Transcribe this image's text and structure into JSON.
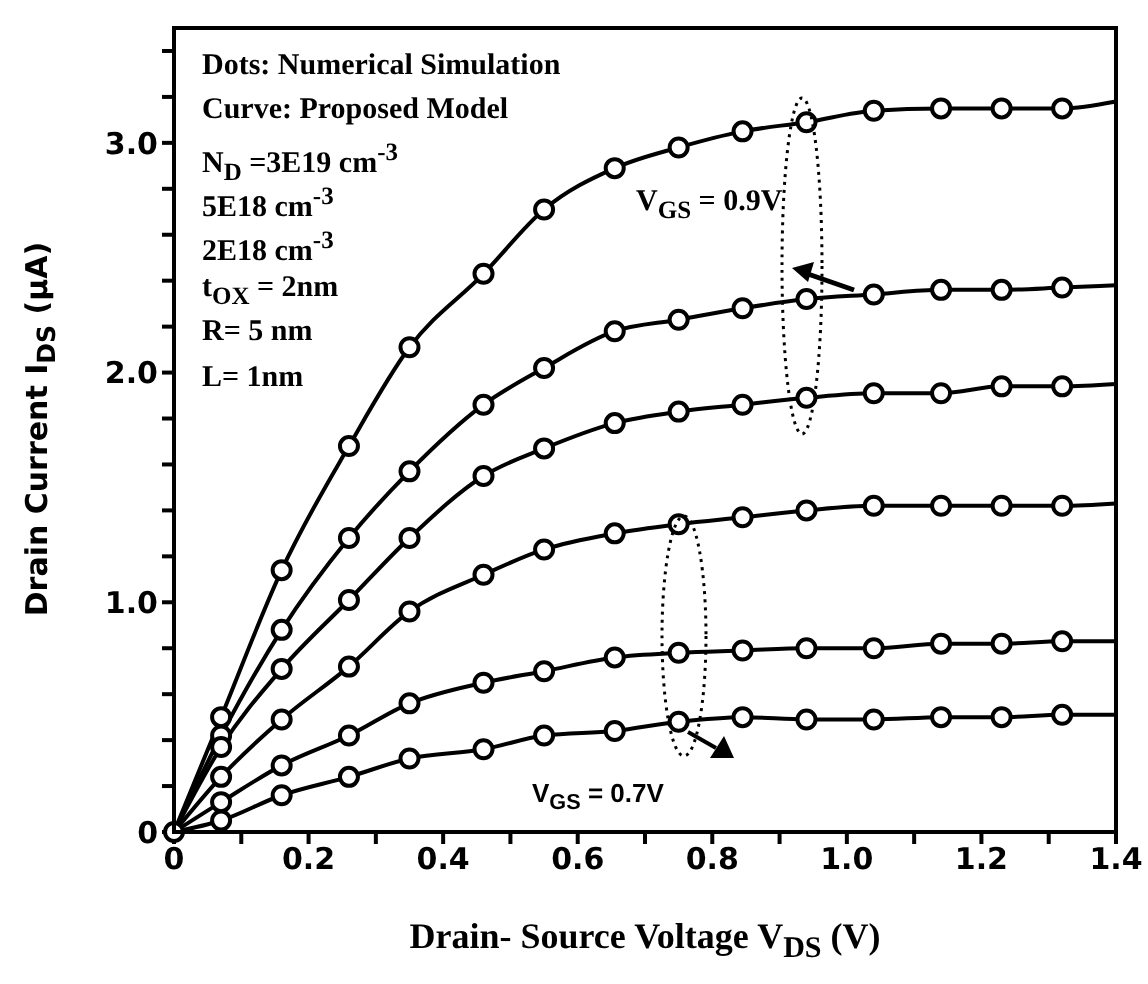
{
  "chart_data": {
    "type": "line",
    "xlabel": "Drain- Source Voltage V$_{DS}$ (V)",
    "ylabel": "Drain Current I$_{DS}$  (μA)",
    "xlim": [
      0,
      1.4
    ],
    "ylim": [
      0,
      3.5
    ],
    "xticks": [
      {
        "value": 0,
        "label": "0"
      },
      {
        "value": 0.1,
        "label": null
      },
      {
        "value": 0.2,
        "label": "0.2"
      },
      {
        "value": 0.3,
        "label": null
      },
      {
        "value": 0.4,
        "label": "0.4"
      },
      {
        "value": 0.5,
        "label": null
      },
      {
        "value": 0.6,
        "label": "0.6"
      },
      {
        "value": 0.7,
        "label": null
      },
      {
        "value": 0.8,
        "label": "0.8"
      },
      {
        "value": 0.9,
        "label": null
      },
      {
        "value": 1.0,
        "label": "1.0"
      },
      {
        "value": 1.1,
        "label": null
      },
      {
        "value": 1.2,
        "label": "1.2"
      },
      {
        "value": 1.3,
        "label": null
      },
      {
        "value": 1.4,
        "label": "1.4"
      }
    ],
    "yticks": [
      {
        "value": 0,
        "label": "0"
      },
      {
        "value": 0.2,
        "label": null
      },
      {
        "value": 0.4,
        "label": null
      },
      {
        "value": 0.6,
        "label": null
      },
      {
        "value": 0.8,
        "label": null
      },
      {
        "value": 1.0,
        "label": "1.0"
      },
      {
        "value": 1.2,
        "label": null
      },
      {
        "value": 1.4,
        "label": null
      },
      {
        "value": 1.6,
        "label": null
      },
      {
        "value": 1.8,
        "label": null
      },
      {
        "value": 2.0,
        "label": "2.0"
      },
      {
        "value": 2.2,
        "label": null
      },
      {
        "value": 2.4,
        "label": null
      },
      {
        "value": 2.6,
        "label": null
      },
      {
        "value": 2.8,
        "label": null
      },
      {
        "value": 3.0,
        "label": "3.0"
      },
      {
        "value": 3.2,
        "label": null
      },
      {
        "value": 3.4,
        "label": null
      }
    ],
    "annotations": [
      "Dots: Numerical Simulation",
      "Curve: Proposed Model",
      "N$_{D}$ =3E19 cm$^{-3}$",
      "5E18 cm$^{-3}$",
      "2E18 cm$^{-3}$",
      "t$_{OX}$ = 2nm",
      "R= 5 nm",
      "L= 1nm",
      "V$_{GS}$ = 0.9V",
      "V$_{GS}$ = 0.7V"
    ],
    "series": [
      {
        "color": "#000000",
        "marker": "none",
        "line_style": "solid",
        "x": [
          0,
          0.07,
          0.16,
          0.26,
          0.35,
          0.46,
          0.55,
          0.655,
          0.75,
          0.845,
          0.94,
          1.04,
          1.14,
          1.23,
          1.32,
          1.4
        ],
        "values": [
          0,
          0.5,
          1.14,
          1.68,
          2.11,
          2.43,
          2.71,
          2.89,
          2.98,
          3.05,
          3.09,
          3.14,
          3.15,
          3.15,
          3.15,
          3.18
        ]
      },
      {
        "color": "#000000",
        "marker": "none",
        "line_style": "solid",
        "x": [
          0,
          0.07,
          0.16,
          0.26,
          0.35,
          0.46,
          0.55,
          0.655,
          0.75,
          0.845,
          0.94,
          1.04,
          1.14,
          1.23,
          1.32,
          1.4
        ],
        "values": [
          0,
          0.42,
          0.88,
          1.28,
          1.57,
          1.86,
          2.02,
          2.18,
          2.23,
          2.28,
          2.32,
          2.34,
          2.36,
          2.36,
          2.37,
          2.38
        ]
      },
      {
        "color": "#000000",
        "marker": "none",
        "line_style": "solid",
        "x": [
          0,
          0.07,
          0.16,
          0.26,
          0.35,
          0.46,
          0.55,
          0.655,
          0.75,
          0.845,
          0.94,
          1.04,
          1.14,
          1.23,
          1.32,
          1.4
        ],
        "values": [
          0,
          0.37,
          0.71,
          1.01,
          1.28,
          1.55,
          1.67,
          1.78,
          1.83,
          1.86,
          1.89,
          1.91,
          1.91,
          1.94,
          1.94,
          1.95
        ]
      },
      {
        "color": "#000000",
        "marker": "none",
        "line_style": "solid",
        "x": [
          0,
          0.07,
          0.16,
          0.26,
          0.35,
          0.46,
          0.55,
          0.655,
          0.75,
          0.845,
          0.94,
          1.04,
          1.14,
          1.23,
          1.32,
          1.4
        ],
        "values": [
          0,
          0.24,
          0.49,
          0.72,
          0.96,
          1.12,
          1.23,
          1.3,
          1.34,
          1.37,
          1.4,
          1.42,
          1.42,
          1.42,
          1.42,
          1.43
        ]
      },
      {
        "color": "#000000",
        "marker": "none",
        "line_style": "solid",
        "x": [
          0,
          0.07,
          0.16,
          0.26,
          0.35,
          0.46,
          0.55,
          0.655,
          0.75,
          0.845,
          0.94,
          1.04,
          1.14,
          1.23,
          1.32,
          1.4
        ],
        "values": [
          0,
          0.13,
          0.29,
          0.42,
          0.56,
          0.65,
          0.7,
          0.76,
          0.78,
          0.79,
          0.8,
          0.8,
          0.82,
          0.82,
          0.83,
          0.83
        ]
      },
      {
        "color": "#000000",
        "marker": "none",
        "line_style": "solid",
        "x": [
          0,
          0.07,
          0.16,
          0.26,
          0.35,
          0.46,
          0.55,
          0.655,
          0.75,
          0.845,
          0.94,
          1.04,
          1.14,
          1.23,
          1.32,
          1.4
        ],
        "values": [
          0,
          0.05,
          0.16,
          0.24,
          0.32,
          0.36,
          0.42,
          0.44,
          0.48,
          0.5,
          0.49,
          0.49,
          0.5,
          0.5,
          0.51,
          0.51
        ]
      },
      {
        "type": "scatter",
        "color": "#000000",
        "marker": "circle",
        "x": [
          0,
          0.07,
          0.16,
          0.26,
          0.35,
          0.46,
          0.55,
          0.655,
          0.75,
          0.845,
          0.94,
          1.04,
          1.14,
          1.23,
          1.32
        ],
        "values": [
          0,
          0.5,
          1.14,
          1.68,
          2.11,
          2.43,
          2.71,
          2.89,
          2.98,
          3.05,
          3.09,
          3.14,
          3.15,
          3.15,
          3.15
        ]
      },
      {
        "type": "scatter",
        "color": "#000000",
        "marker": "circle",
        "x": [
          0.07,
          0.16,
          0.26,
          0.35,
          0.46,
          0.55,
          0.655,
          0.75,
          0.845,
          0.94,
          1.04,
          1.14,
          1.23,
          1.32
        ],
        "values": [
          0.42,
          0.88,
          1.28,
          1.57,
          1.86,
          2.02,
          2.18,
          2.23,
          2.28,
          2.32,
          2.34,
          2.36,
          2.36,
          2.37
        ]
      },
      {
        "type": "scatter",
        "color": "#000000",
        "marker": "circle",
        "x": [
          0.07,
          0.16,
          0.26,
          0.35,
          0.46,
          0.55,
          0.655,
          0.75,
          0.845,
          0.94,
          1.04,
          1.14,
          1.23,
          1.32
        ],
        "values": [
          0.37,
          0.71,
          1.01,
          1.28,
          1.55,
          1.67,
          1.78,
          1.83,
          1.86,
          1.89,
          1.91,
          1.91,
          1.94,
          1.94
        ]
      },
      {
        "type": "scatter",
        "color": "#000000",
        "marker": "circle",
        "x": [
          0.07,
          0.16,
          0.26,
          0.35,
          0.46,
          0.55,
          0.655,
          0.75,
          0.845,
          0.94,
          1.04,
          1.14,
          1.23,
          1.32
        ],
        "values": [
          0.24,
          0.49,
          0.72,
          0.96,
          1.12,
          1.23,
          1.3,
          1.34,
          1.37,
          1.4,
          1.42,
          1.42,
          1.42,
          1.42
        ]
      },
      {
        "type": "scatter",
        "color": "#000000",
        "marker": "circle",
        "x": [
          0.07,
          0.16,
          0.26,
          0.35,
          0.46,
          0.55,
          0.655,
          0.75,
          0.845,
          0.94,
          1.04,
          1.14,
          1.23,
          1.32
        ],
        "values": [
          0.13,
          0.29,
          0.42,
          0.56,
          0.65,
          0.7,
          0.76,
          0.78,
          0.79,
          0.8,
          0.8,
          0.82,
          0.82,
          0.83
        ]
      },
      {
        "type": "scatter",
        "color": "#000000",
        "marker": "circle",
        "x": [
          0.07,
          0.16,
          0.26,
          0.35,
          0.46,
          0.55,
          0.655,
          0.75,
          0.845,
          0.94,
          1.04,
          1.14,
          1.23,
          1.32
        ],
        "values": [
          0.05,
          0.16,
          0.24,
          0.32,
          0.36,
          0.42,
          0.44,
          0.48,
          0.5,
          0.49,
          0.49,
          0.5,
          0.5,
          0.51
        ]
      }
    ]
  }
}
